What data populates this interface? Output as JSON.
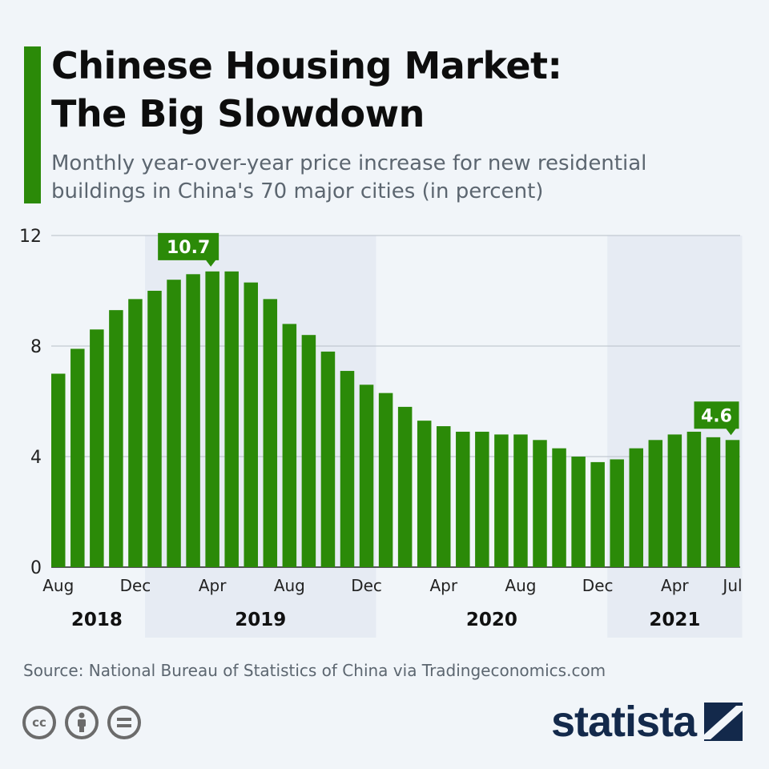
{
  "header": {
    "title_line1": "Chinese Housing Market:",
    "title_line2": "The Big Slowdown",
    "subtitle_line1": "Monthly year-over-year price increase for new residential",
    "subtitle_line2": "buildings in China's 70 major cities (in percent)"
  },
  "footer": {
    "source": "Source: National Bureau of Statistics of China via Tradingeconomics.com",
    "brand": "statista",
    "license_icons": [
      "creative-commons-icon",
      "attribution-icon",
      "no-derivatives-icon"
    ],
    "cc_text": "cc"
  },
  "colors": {
    "bar": "#2b8a08",
    "band": "#e6ebf3",
    "title": "#0d0d0d",
    "subtitle": "#5c6670",
    "brand": "#13294b"
  },
  "chart_data": {
    "type": "bar",
    "categories": [
      "Aug 2018",
      "Sep 2018",
      "Oct 2018",
      "Nov 2018",
      "Dec 2018",
      "Jan 2019",
      "Feb 2019",
      "Mar 2019",
      "Apr 2019",
      "May 2019",
      "Jun 2019",
      "Jul 2019",
      "Aug 2019",
      "Sep 2019",
      "Oct 2019",
      "Nov 2019",
      "Dec 2019",
      "Jan 2020",
      "Feb 2020",
      "Mar 2020",
      "Apr 2020",
      "May 2020",
      "Jun 2020",
      "Jul 2020",
      "Aug 2020",
      "Sep 2020",
      "Oct 2020",
      "Nov 2020",
      "Dec 2020",
      "Jan 2021",
      "Feb 2021",
      "Mar 2021",
      "Apr 2021",
      "May 2021",
      "Jun 2021",
      "Jul 2021"
    ],
    "values": [
      7.0,
      7.9,
      8.6,
      9.3,
      9.7,
      10.0,
      10.4,
      10.6,
      10.7,
      10.7,
      10.3,
      9.7,
      8.8,
      8.4,
      7.8,
      7.1,
      6.6,
      6.3,
      5.8,
      5.3,
      5.1,
      4.9,
      4.9,
      4.8,
      4.8,
      4.6,
      4.3,
      4.0,
      3.8,
      3.9,
      4.3,
      4.6,
      4.8,
      4.9,
      4.7,
      4.6
    ],
    "ylim": [
      0,
      12
    ],
    "yticks": [
      "0",
      "4",
      "8",
      "12"
    ],
    "ytick_values": [
      0,
      4,
      8,
      12
    ],
    "month_labels": [
      {
        "index": 0,
        "label": "Aug"
      },
      {
        "index": 4,
        "label": "Dec"
      },
      {
        "index": 8,
        "label": "Apr"
      },
      {
        "index": 12,
        "label": "Aug"
      },
      {
        "index": 16,
        "label": "Dec"
      },
      {
        "index": 20,
        "label": "Apr"
      },
      {
        "index": 24,
        "label": "Aug"
      },
      {
        "index": 28,
        "label": "Dec"
      },
      {
        "index": 32,
        "label": "Apr"
      },
      {
        "index": 35,
        "label": "Jul"
      }
    ],
    "years": [
      {
        "label": "2018",
        "start": 0,
        "end": 4,
        "shaded": false
      },
      {
        "label": "2019",
        "start": 5,
        "end": 16,
        "shaded": true
      },
      {
        "label": "2020",
        "start": 17,
        "end": 28,
        "shaded": false
      },
      {
        "label": "2021",
        "start": 29,
        "end": 35,
        "shaded": true
      }
    ],
    "annotations": [
      {
        "index": 8,
        "label": "10.7"
      },
      {
        "index": 35,
        "label": "4.6"
      }
    ],
    "grid": true
  }
}
